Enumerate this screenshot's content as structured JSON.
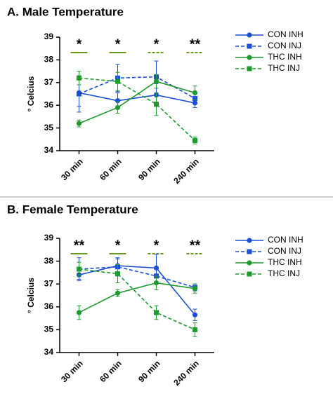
{
  "chart_data": [
    {
      "type": "line",
      "title": "A. Male Temperature",
      "y_label": "° Celcius",
      "categories": [
        "30 min",
        "60 min",
        "90 min",
        "240 min"
      ],
      "ylim": [
        34,
        39
      ],
      "yticks": [
        34,
        35,
        36,
        37,
        38,
        39
      ],
      "legend": "upper right outside",
      "series": [
        {
          "name": "CON INH",
          "color": "#1a4fd6",
          "line_style": "solid",
          "marker": "circle",
          "values": [
            36.55,
            36.2,
            36.45,
            36.1
          ],
          "errors": [
            0.6,
            0.35,
            0.5,
            0.2
          ]
        },
        {
          "name": "CON INJ",
          "color": "#1a4fd6",
          "line_style": "dashed",
          "marker": "square",
          "values": [
            36.5,
            37.2,
            37.25,
            36.3
          ],
          "errors": [
            0.8,
            0.6,
            0.7,
            0.2
          ]
        },
        {
          "name": "THC INH",
          "color": "#1e9a2e",
          "line_style": "solid",
          "marker": "circle",
          "values": [
            35.2,
            35.9,
            37.05,
            36.55
          ],
          "errors": [
            0.15,
            0.25,
            0.3,
            0.3
          ]
        },
        {
          "name": "THC INJ",
          "color": "#1e9a2e",
          "line_style": "dashed",
          "marker": "square",
          "values": [
            37.2,
            37.05,
            36.05,
            34.45
          ],
          "errors": [
            0.3,
            0.4,
            0.5,
            0.15
          ]
        }
      ],
      "annotations": [
        {
          "text": "*",
          "line_style": "solid"
        },
        {
          "text": "*",
          "line_style": "solid"
        },
        {
          "text": "*",
          "line_style": "dashed"
        },
        {
          "text": "**",
          "line_style": "dashed"
        }
      ]
    },
    {
      "type": "line",
      "title": "B. Female Temperature",
      "y_label": "° Celcius",
      "categories": [
        "30 min",
        "60 min",
        "90 min",
        "240 min"
      ],
      "ylim": [
        34,
        39
      ],
      "yticks": [
        34,
        35,
        36,
        37,
        38,
        39
      ],
      "legend": "right outside",
      "series": [
        {
          "name": "CON INH",
          "color": "#1a4fd6",
          "line_style": "solid",
          "marker": "circle",
          "values": [
            37.4,
            37.8,
            37.7,
            35.65
          ],
          "errors": [
            0.2,
            0.3,
            0.6,
            0.25
          ]
        },
        {
          "name": "CON INJ",
          "color": "#1a4fd6",
          "line_style": "dashed",
          "marker": "square",
          "values": [
            37.65,
            37.75,
            37.35,
            36.85
          ],
          "errors": [
            0.5,
            0.4,
            0.3,
            0.15
          ]
        },
        {
          "name": "THC INH",
          "color": "#1e9a2e",
          "line_style": "solid",
          "marker": "circle",
          "values": [
            35.75,
            36.6,
            37.05,
            36.8
          ],
          "errors": [
            0.3,
            0.15,
            0.3,
            0.2
          ]
        },
        {
          "name": "THC INJ",
          "color": "#1e9a2e",
          "line_style": "dashed",
          "marker": "square",
          "values": [
            37.65,
            37.45,
            35.75,
            35.0
          ],
          "errors": [
            0.3,
            0.4,
            0.3,
            0.3
          ]
        }
      ],
      "annotations": [
        {
          "text": "**",
          "line_style": "solid"
        },
        {
          "text": "*",
          "line_style": "solid"
        },
        {
          "text": "*",
          "line_style": "dashed"
        },
        {
          "text": "**",
          "line_style": "dashed"
        }
      ]
    }
  ]
}
